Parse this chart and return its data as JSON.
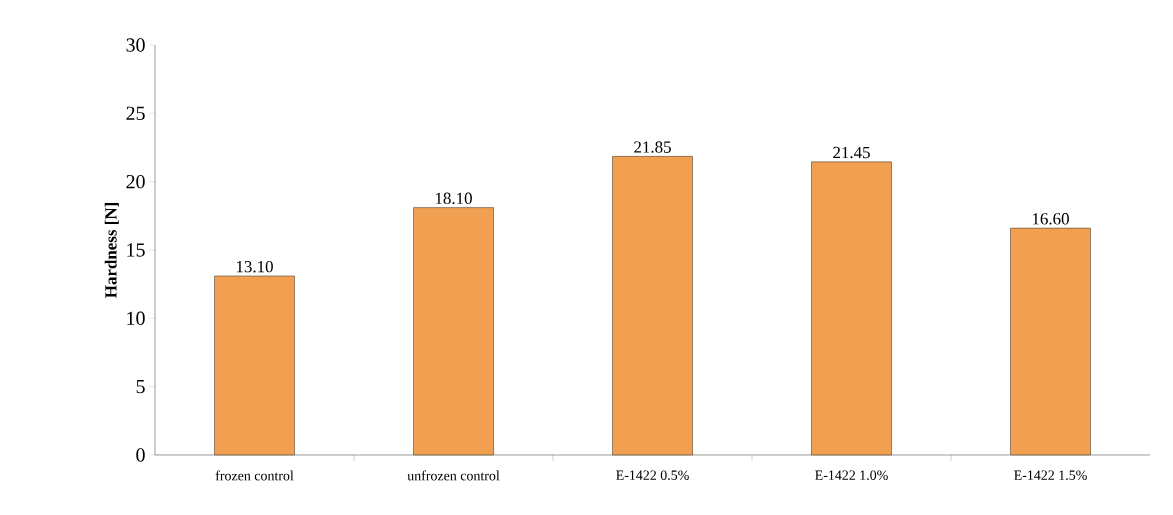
{
  "chart_data": {
    "type": "bar",
    "ylabel": "Hardness [N]",
    "categories": [
      "frozen control",
      "unfrozen control",
      "E-1422 0.5%",
      "E-1422 1.0%",
      "E-1422 1.5%"
    ],
    "values": [
      13.1,
      18.1,
      21.85,
      21.45,
      16.6
    ],
    "value_labels": [
      "13.10",
      "18.10",
      "21.85",
      "21.45",
      "16.60"
    ],
    "color": "#f0a050",
    "ylim": [
      0,
      30
    ],
    "yticks": [
      0,
      5,
      10,
      15,
      20,
      25,
      30
    ],
    "grid": false
  }
}
